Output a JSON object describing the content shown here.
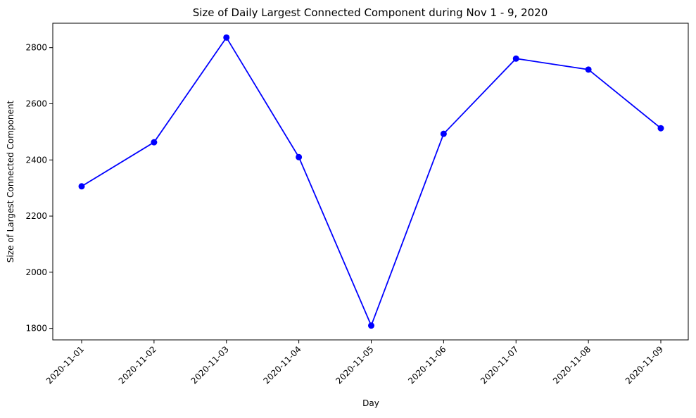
{
  "chart_data": {
    "type": "line",
    "title": "Size of Daily Largest Connected Component during Nov 1 - 9, 2020",
    "xlabel": "Day",
    "ylabel": "Size of Largest Connected Component",
    "categories": [
      "2020-11-01",
      "2020-11-02",
      "2020-11-03",
      "2020-11-04",
      "2020-11-05",
      "2020-11-06",
      "2020-11-07",
      "2020-11-08",
      "2020-11-09"
    ],
    "series": [
      {
        "values": [
          2306,
          2463,
          2836,
          2410,
          1810,
          2493,
          2761,
          2722,
          2513
        ],
        "color": "#0000ff",
        "marker": "circle"
      }
    ],
    "yticks": [
      1800,
      2000,
      2200,
      2400,
      2600,
      2800
    ],
    "ylim": [
      1759,
      2887
    ],
    "grid": false,
    "legend": "none"
  }
}
